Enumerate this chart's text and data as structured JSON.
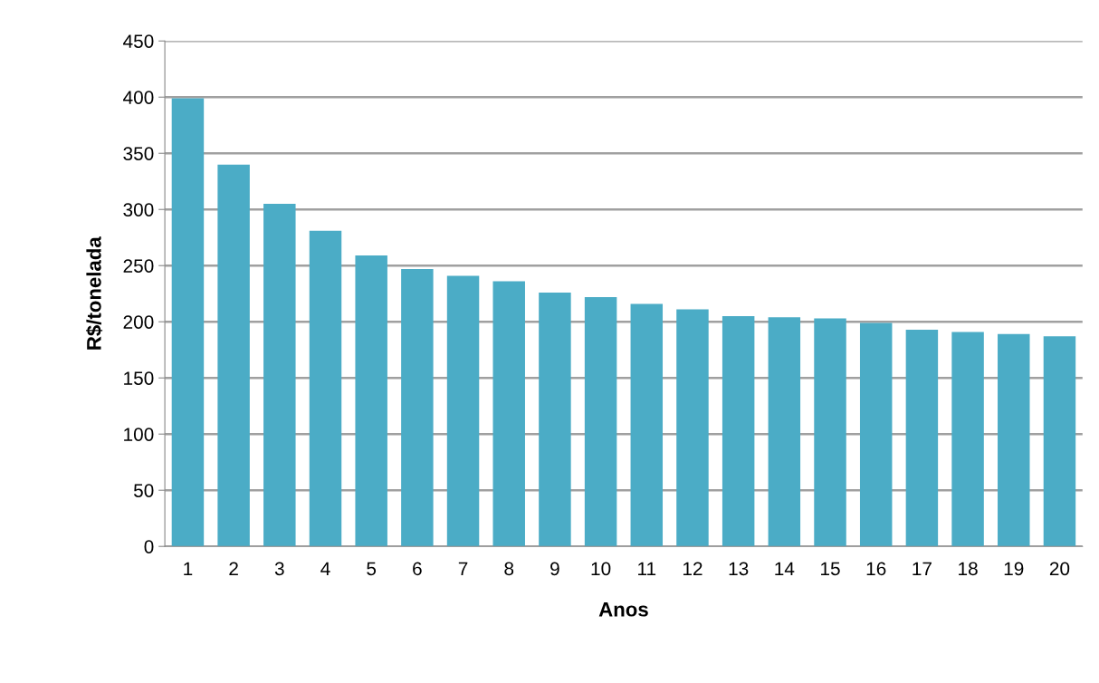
{
  "chart_data": {
    "type": "bar",
    "xlabel": "Anos",
    "ylabel": "R$/tonelada",
    "categories": [
      "1",
      "2",
      "3",
      "4",
      "5",
      "6",
      "7",
      "8",
      "9",
      "10",
      "11",
      "12",
      "13",
      "14",
      "15",
      "16",
      "17",
      "18",
      "19",
      "20"
    ],
    "values": [
      399,
      340,
      305,
      281,
      259,
      247,
      241,
      236,
      226,
      222,
      216,
      211,
      205,
      204,
      203,
      199,
      193,
      191,
      189,
      187
    ],
    "color": "#4bacc6",
    "ylim": [
      0,
      450
    ],
    "yticks": [
      0,
      50,
      100,
      150,
      200,
      250,
      300,
      350,
      400,
      450
    ],
    "grid": "y"
  }
}
